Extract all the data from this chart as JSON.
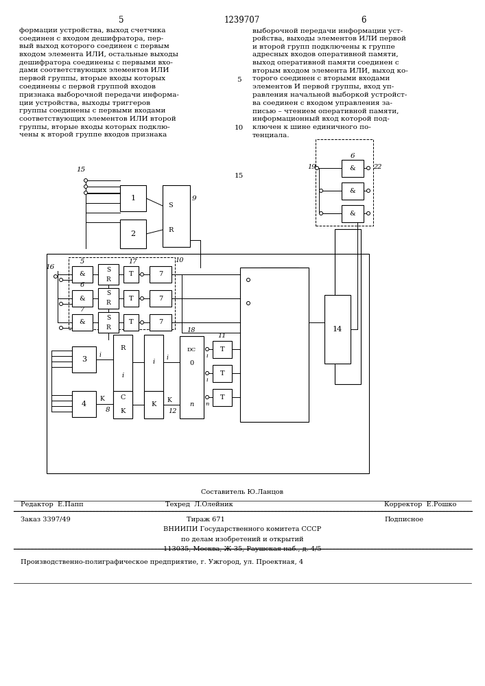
{
  "page_number_left": "5",
  "page_number_center": "1239707",
  "page_number_right": "6",
  "text_left": "формации устройства, выход счетчика\nсоединен с входом дешифратора, пер-\nвый выход которого соединен с первым\nвходом элемента ИЛИ, остальные выходы\nдешифратора соединены с первыми вхо-\nдами соответствующих элементов ИЛИ\nпервой группы, вторые входы которых\nсоединены с первой группой входов\nпризнака выборочной передачи информа-\nции устройства, выходы триггеров\nгруппы соединены с первыми входами\nсоответствующих элементов ИЛИ второй\nгруппы, вторые входы которых подклю-\nчены к второй группе входов признака",
  "text_right": "выборочной передачи информации уст-\nройства, выходы элементов ИЛИ первой\nи второй групп подключены к группе\nадресных входов оперативной памяти,\nвыход оперативной памяти соединен с\nвторым входом элемента ИЛИ, выход ко-\nторого соединен с вторыми входами\nэлементов И первой группы, вход уп-\nравления начальной выборкой устройст-\nва соединен с входом управления за-\nписью – чтением оперативной памяти,\nинформационный вход которой под-\nключен к шине единичного по-\nтенциала.",
  "editor_line": "Составитель Ю.Ланцов",
  "editor_label": "Редактор  Е.Папп",
  "techred_label": "Техред  Л.Олейник",
  "corrector_label": "Корректор  Е.Рошко",
  "order_label": "Заказ 3397/49",
  "tirage_label": "Тираж 671",
  "podpisnoe_label": "Подписное",
  "vniip1": "ВНИИПИ Государственного комитета СССР",
  "vniip2": "по делам изобретений и открытий",
  "vniip3": "113035, Москва, Ж-35, Раушская наб., д. 4/5",
  "factory": "Производственно-полиграфическое предприятие, г. Ужгород, ул. Проектная, 4",
  "bg_color": "#ffffff",
  "text_color": "#000000"
}
